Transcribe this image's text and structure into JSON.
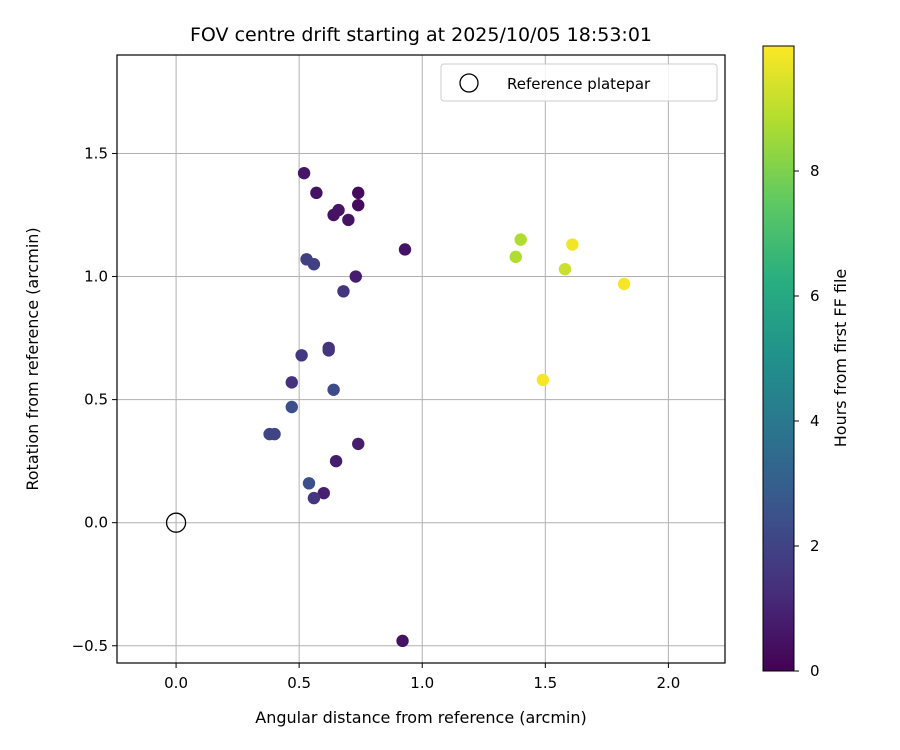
{
  "chart_data": {
    "type": "scatter",
    "title": "FOV centre drift starting at 2025/10/05 18:53:01",
    "xlabel": "Angular distance from reference (arcmin)",
    "ylabel": "Rotation from reference (arcmin)",
    "xlim": [
      -0.24,
      2.23
    ],
    "ylim": [
      -0.57,
      1.9
    ],
    "xticks": [
      0.0,
      0.5,
      1.0,
      1.5,
      2.0
    ],
    "xtick_labels": [
      "0.0",
      "0.5",
      "1.0",
      "1.5",
      "2.0"
    ],
    "yticks": [
      -0.5,
      0.0,
      0.5,
      1.0,
      1.5
    ],
    "ytick_labels": [
      "−0.5",
      "0.0",
      "0.5",
      "1.0",
      "1.5"
    ],
    "grid": true,
    "legend": {
      "location": "top-right",
      "entries": [
        "Reference platepar"
      ]
    },
    "reference_point": {
      "x": 0.0,
      "y": 0.0
    },
    "colorbar": {
      "label": "Hours from first FF file",
      "range": [
        0,
        10
      ],
      "ticks": [
        0,
        2,
        4,
        6,
        8
      ],
      "tick_labels": [
        "0",
        "2",
        "4",
        "6",
        "8"
      ],
      "colormap": "viridis"
    },
    "points": [
      {
        "x": 0.52,
        "y": 1.42,
        "c": 0.6
      },
      {
        "x": 0.57,
        "y": 1.34,
        "c": 0.5
      },
      {
        "x": 0.74,
        "y": 1.34,
        "c": 0.3
      },
      {
        "x": 0.74,
        "y": 1.29,
        "c": 0.3
      },
      {
        "x": 0.66,
        "y": 1.27,
        "c": 0.6
      },
      {
        "x": 0.64,
        "y": 1.25,
        "c": 0.5
      },
      {
        "x": 0.7,
        "y": 1.23,
        "c": 0.5
      },
      {
        "x": 0.93,
        "y": 1.11,
        "c": 0.5
      },
      {
        "x": 0.53,
        "y": 1.07,
        "c": 1.9
      },
      {
        "x": 0.56,
        "y": 1.05,
        "c": 1.9
      },
      {
        "x": 0.73,
        "y": 1.0,
        "c": 0.8
      },
      {
        "x": 0.68,
        "y": 0.94,
        "c": 1.5
      },
      {
        "x": 0.62,
        "y": 0.71,
        "c": 1.4
      },
      {
        "x": 0.62,
        "y": 0.7,
        "c": 1.5
      },
      {
        "x": 0.51,
        "y": 0.68,
        "c": 1.6
      },
      {
        "x": 0.47,
        "y": 0.57,
        "c": 1.4
      },
      {
        "x": 0.64,
        "y": 0.54,
        "c": 2.3
      },
      {
        "x": 0.47,
        "y": 0.47,
        "c": 2.4
      },
      {
        "x": 0.38,
        "y": 0.36,
        "c": 2.1
      },
      {
        "x": 0.4,
        "y": 0.36,
        "c": 2.0
      },
      {
        "x": 0.74,
        "y": 0.32,
        "c": 0.8
      },
      {
        "x": 0.65,
        "y": 0.25,
        "c": 0.8
      },
      {
        "x": 0.54,
        "y": 0.16,
        "c": 2.4
      },
      {
        "x": 0.6,
        "y": 0.12,
        "c": 0.9
      },
      {
        "x": 0.56,
        "y": 0.1,
        "c": 1.5
      },
      {
        "x": 0.92,
        "y": -0.48,
        "c": 0.5
      },
      {
        "x": 1.4,
        "y": 1.15,
        "c": 8.8
      },
      {
        "x": 1.38,
        "y": 1.08,
        "c": 8.8
      },
      {
        "x": 1.61,
        "y": 1.13,
        "c": 9.8
      },
      {
        "x": 1.58,
        "y": 1.03,
        "c": 9.2
      },
      {
        "x": 1.82,
        "y": 0.97,
        "c": 9.9
      },
      {
        "x": 1.49,
        "y": 0.58,
        "c": 9.9
      }
    ]
  }
}
